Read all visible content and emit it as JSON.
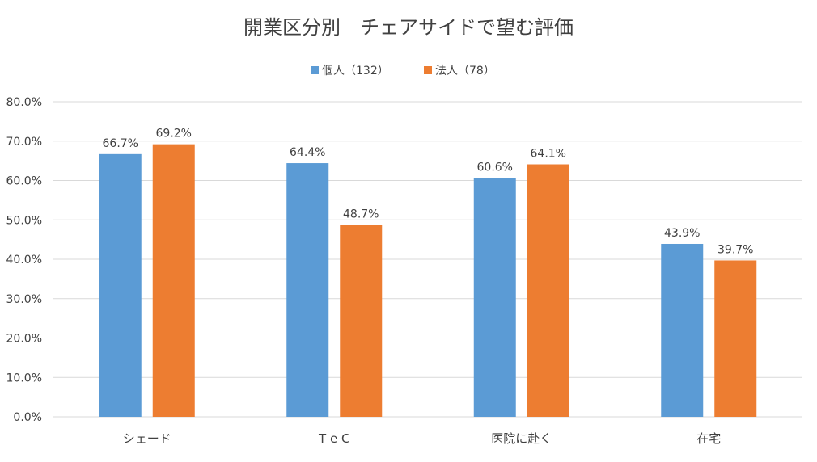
{
  "chart_data": {
    "type": "bar",
    "title": "開業区分別　チェアサイドで望む評価",
    "categories": [
      "シェード",
      "T e C",
      "医院に赴く",
      "在宅"
    ],
    "series": [
      {
        "name": "個人（132）",
        "color": "#5b9bd5",
        "values": [
          66.7,
          64.4,
          60.6,
          43.9
        ],
        "labels": [
          "66.7%",
          "64.4%",
          "60.6%",
          "43.9%"
        ]
      },
      {
        "name": "法人（78）",
        "color": "#ed7d31",
        "values": [
          69.2,
          48.7,
          64.1,
          39.7
        ],
        "labels": [
          "69.2%",
          "48.7%",
          "64.1%",
          "39.7%"
        ]
      }
    ],
    "ylim": [
      0,
      80
    ],
    "yticks": [
      "0.0%",
      "10.0%",
      "20.0%",
      "30.0%",
      "40.0%",
      "50.0%",
      "60.0%",
      "70.0%",
      "80.0%"
    ],
    "xlabel": "",
    "ylabel": "",
    "grid": true,
    "legend_position": "top-center",
    "gridline_color": "#d9d9d9",
    "text_color": "#404040"
  }
}
